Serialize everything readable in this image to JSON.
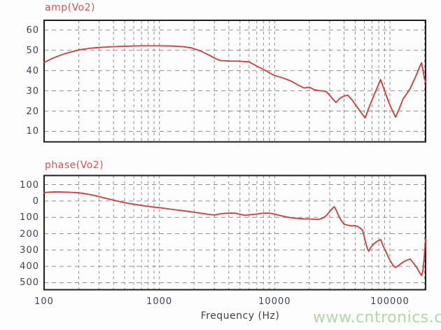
{
  "colors": {
    "curve": "#d93838",
    "title": "#e2504e",
    "tick_label": "#3f3f5e",
    "axis_label": "#3f3f3f",
    "watermark": "#b2d9a2",
    "grid": "#8f8f8f",
    "border": "#1f1f1f",
    "background": "#fdfdfd"
  },
  "x_axis": {
    "label": "Frequency (Hz)",
    "scale": "log",
    "min": 100,
    "max": 204000,
    "ticks": [
      {
        "value": 100,
        "label": "100"
      },
      {
        "value": 1000,
        "label": "1000"
      },
      {
        "value": 10000,
        "label": "10000"
      },
      {
        "value": 100000,
        "label": "100000"
      }
    ]
  },
  "watermark": {
    "text": "www.cntronics.com"
  },
  "chart_data": [
    {
      "type": "line",
      "title": "amp(Vo2)",
      "xlabel": "Frequency (Hz)",
      "ylabel": "",
      "x_scale": "log",
      "xlim": [
        100,
        204000
      ],
      "ylim": [
        4.8,
        64.8
      ],
      "grid": true,
      "y_ticks": [
        60,
        50,
        40,
        30,
        20,
        10
      ],
      "y_tick_labels": [
        "60",
        "50",
        "40",
        "30",
        "20",
        "10"
      ],
      "series": [
        {
          "name": "amp(Vo2)",
          "points": [
            [
              100,
              44
            ],
            [
              120,
              46.2
            ],
            [
              150,
              48.3
            ],
            [
              200,
              50.2
            ],
            [
              250,
              51
            ],
            [
              300,
              51.4
            ],
            [
              400,
              51.8
            ],
            [
              500,
              52
            ],
            [
              700,
              52.2
            ],
            [
              1000,
              52.2
            ],
            [
              1300,
              52.1
            ],
            [
              1600,
              51.8
            ],
            [
              1900,
              51.2
            ],
            [
              2300,
              49.6
            ],
            [
              2700,
              47.6
            ],
            [
              3100,
              45.8
            ],
            [
              3400,
              44.9
            ],
            [
              4000,
              44.7
            ],
            [
              5000,
              44.6
            ],
            [
              6000,
              44.3
            ],
            [
              7000,
              42.2
            ],
            [
              8000,
              40.6
            ],
            [
              9000,
              38.9
            ],
            [
              10000,
              37.6
            ],
            [
              12000,
              36.2
            ],
            [
              14000,
              34.7
            ],
            [
              16000,
              32.8
            ],
            [
              18000,
              31.4
            ],
            [
              20000,
              31.8
            ],
            [
              22000,
              30.6
            ],
            [
              24000,
              30.1
            ],
            [
              26000,
              30
            ],
            [
              28000,
              29.7
            ],
            [
              30000,
              27.8
            ],
            [
              32000,
              25.9
            ],
            [
              34000,
              24.3
            ],
            [
              37000,
              26.4
            ],
            [
              40000,
              27.4
            ],
            [
              43000,
              27.9
            ],
            [
              47000,
              25.5
            ],
            [
              52000,
              22
            ],
            [
              57000,
              18.8
            ],
            [
              61000,
              16.7
            ],
            [
              66000,
              22
            ],
            [
              72000,
              27.2
            ],
            [
              78000,
              31.8
            ],
            [
              83000,
              35.6
            ],
            [
              90000,
              30
            ],
            [
              97000,
              24.8
            ],
            [
              105000,
              20.3
            ],
            [
              112000,
              17
            ],
            [
              120000,
              21
            ],
            [
              130000,
              26
            ],
            [
              140000,
              28.6
            ],
            [
              150000,
              31.2
            ],
            [
              160000,
              34.6
            ],
            [
              170000,
              38
            ],
            [
              180000,
              41.5
            ],
            [
              188000,
              43.8
            ],
            [
              194000,
              40
            ],
            [
              199000,
              36.2
            ],
            [
              204000,
              34.3
            ]
          ]
        }
      ]
    },
    {
      "type": "line",
      "title": "phase(Vo2)",
      "xlabel": "Frequency (Hz)",
      "ylabel": "",
      "x_scale": "log",
      "xlim": [
        100,
        204000
      ],
      "ylim": [
        -543,
        156
      ],
      "grid": true,
      "y_ticks": [
        100,
        0,
        -100,
        -200,
        -300,
        -400,
        -500
      ],
      "y_tick_labels": [
        "100",
        "0",
        "100",
        "200",
        "300",
        "400",
        "500"
      ],
      "series": [
        {
          "name": "phase(Vo2)",
          "points": [
            [
              100,
              52
            ],
            [
              115,
              55
            ],
            [
              130,
              56
            ],
            [
              150,
              55
            ],
            [
              170,
              53
            ],
            [
              200,
              50
            ],
            [
              230,
              44
            ],
            [
              260,
              37
            ],
            [
              300,
              27
            ],
            [
              350,
              15
            ],
            [
              400,
              5
            ],
            [
              450,
              -3
            ],
            [
              500,
              -10
            ],
            [
              600,
              -20
            ],
            [
              700,
              -27
            ],
            [
              800,
              -33
            ],
            [
              900,
              -38
            ],
            [
              1000,
              -41
            ],
            [
              1200,
              -48
            ],
            [
              1500,
              -57
            ],
            [
              1800,
              -64
            ],
            [
              2100,
              -71
            ],
            [
              2400,
              -77
            ],
            [
              2700,
              -82
            ],
            [
              3000,
              -86
            ],
            [
              3300,
              -80
            ],
            [
              3600,
              -76
            ],
            [
              4000,
              -74
            ],
            [
              4500,
              -74
            ],
            [
              5000,
              -81
            ],
            [
              5500,
              -88
            ],
            [
              6000,
              -84
            ],
            [
              7000,
              -80
            ],
            [
              8000,
              -74
            ],
            [
              9000,
              -74
            ],
            [
              10000,
              -80
            ],
            [
              11000,
              -88
            ],
            [
              12000,
              -94
            ],
            [
              13000,
              -99
            ],
            [
              14000,
              -103
            ],
            [
              16000,
              -107
            ],
            [
              18000,
              -109
            ],
            [
              20000,
              -110
            ],
            [
              22000,
              -112
            ],
            [
              24000,
              -113
            ],
            [
              26000,
              -105
            ],
            [
              28000,
              -90
            ],
            [
              30000,
              -65
            ],
            [
              32000,
              -42
            ],
            [
              33000,
              -35
            ],
            [
              34500,
              -62
            ],
            [
              36000,
              -92
            ],
            [
              38000,
              -122
            ],
            [
              40000,
              -142
            ],
            [
              43000,
              -148
            ],
            [
              46000,
              -152
            ],
            [
              50000,
              -150
            ],
            [
              53000,
              -158
            ],
            [
              56000,
              -168
            ],
            [
              58000,
              -182
            ],
            [
              60000,
              -222
            ],
            [
              62000,
              -262
            ],
            [
              64000,
              -295
            ],
            [
              65500,
              -307
            ],
            [
              68000,
              -286
            ],
            [
              72000,
              -264
            ],
            [
              77000,
              -248
            ],
            [
              83000,
              -236
            ],
            [
              88000,
              -280
            ],
            [
              95000,
              -330
            ],
            [
              100000,
              -362
            ],
            [
              106000,
              -392
            ],
            [
              112000,
              -407
            ],
            [
              120000,
              -392
            ],
            [
              130000,
              -374
            ],
            [
              140000,
              -362
            ],
            [
              150000,
              -355
            ],
            [
              160000,
              -380
            ],
            [
              170000,
              -405
            ],
            [
              180000,
              -436
            ],
            [
              188000,
              -456
            ],
            [
              193000,
              -430
            ],
            [
              197000,
              -370
            ],
            [
              200000,
              -310
            ],
            [
              204000,
              -230
            ]
          ]
        }
      ]
    }
  ]
}
